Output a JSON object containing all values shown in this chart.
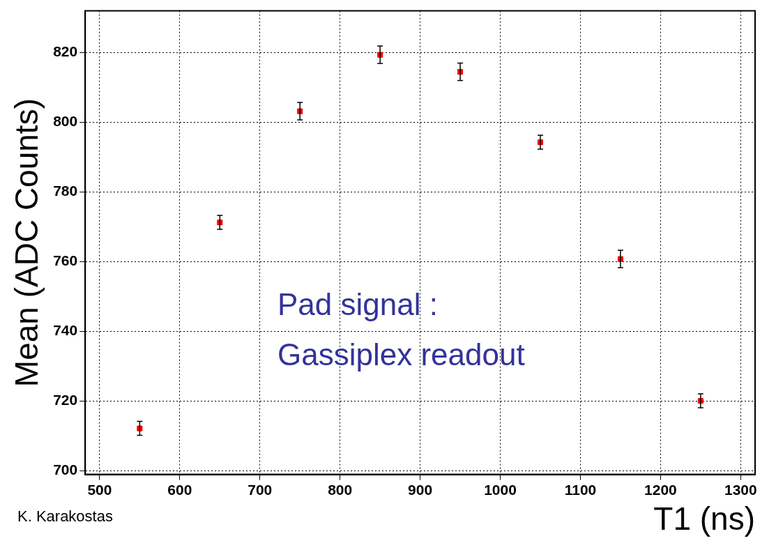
{
  "chart_data": {
    "type": "scatter",
    "xlabel": "T1 (ns)",
    "ylabel": "Mean (ADC Counts)",
    "annotations": [
      "Pad signal :",
      "Gassiplex readout",
      "K. Karakostas"
    ],
    "x": [
      550,
      650,
      750,
      850,
      950,
      1050,
      1150,
      1250
    ],
    "values": [
      712.2,
      771.3,
      803.2,
      819.4,
      814.5,
      794.3,
      760.8,
      720.1
    ],
    "errors": [
      2,
      2,
      2.5,
      2.5,
      2.5,
      2,
      2.5,
      2
    ],
    "color": "#ff0000",
    "marker": "square",
    "xlim": [
      482,
      1318
    ],
    "xticks": [
      500,
      600,
      700,
      800,
      900,
      1000,
      1100,
      1200,
      1300
    ],
    "ylim": [
      699,
      832
    ],
    "yticks": [
      700,
      720,
      740,
      760,
      780,
      800,
      820
    ],
    "grid": true,
    "legend": false
  }
}
